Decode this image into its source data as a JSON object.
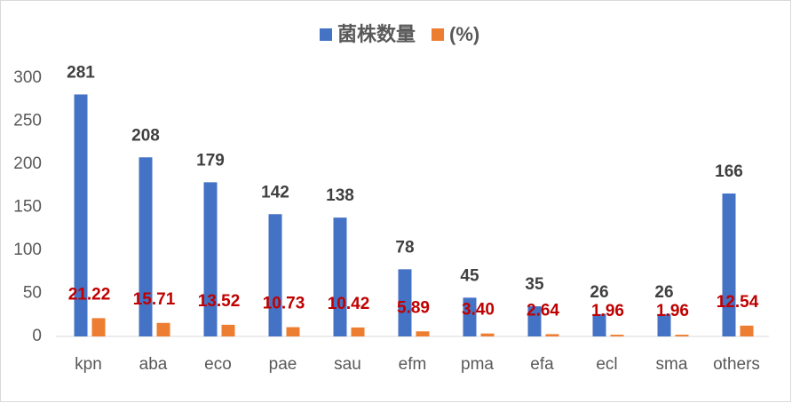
{
  "chart_data": {
    "type": "bar",
    "categories": [
      "kpn",
      "aba",
      "eco",
      "pae",
      "sau",
      "efm",
      "pma",
      "efa",
      "ecl",
      "sma",
      "others"
    ],
    "series": [
      {
        "name": "菌株数量",
        "color": "#4472c4",
        "values": [
          281,
          208,
          179,
          142,
          138,
          78,
          45,
          35,
          26,
          26,
          166
        ]
      },
      {
        "name": "(%)",
        "color": "#ed7d31",
        "values": [
          21.22,
          15.71,
          13.52,
          10.73,
          10.42,
          5.89,
          3.4,
          2.64,
          1.96,
          1.96,
          12.54
        ],
        "value_labels": [
          "21.22",
          "15.71",
          "13.52",
          "10.73",
          "10.42",
          "5.89",
          "3.40",
          "2.64",
          "1.96",
          "1.96",
          "12.54"
        ]
      }
    ],
    "ylim": [
      0,
      300
    ],
    "yticks": [
      0,
      50,
      100,
      150,
      200,
      250,
      300
    ],
    "grid": false,
    "legend": "top"
  }
}
